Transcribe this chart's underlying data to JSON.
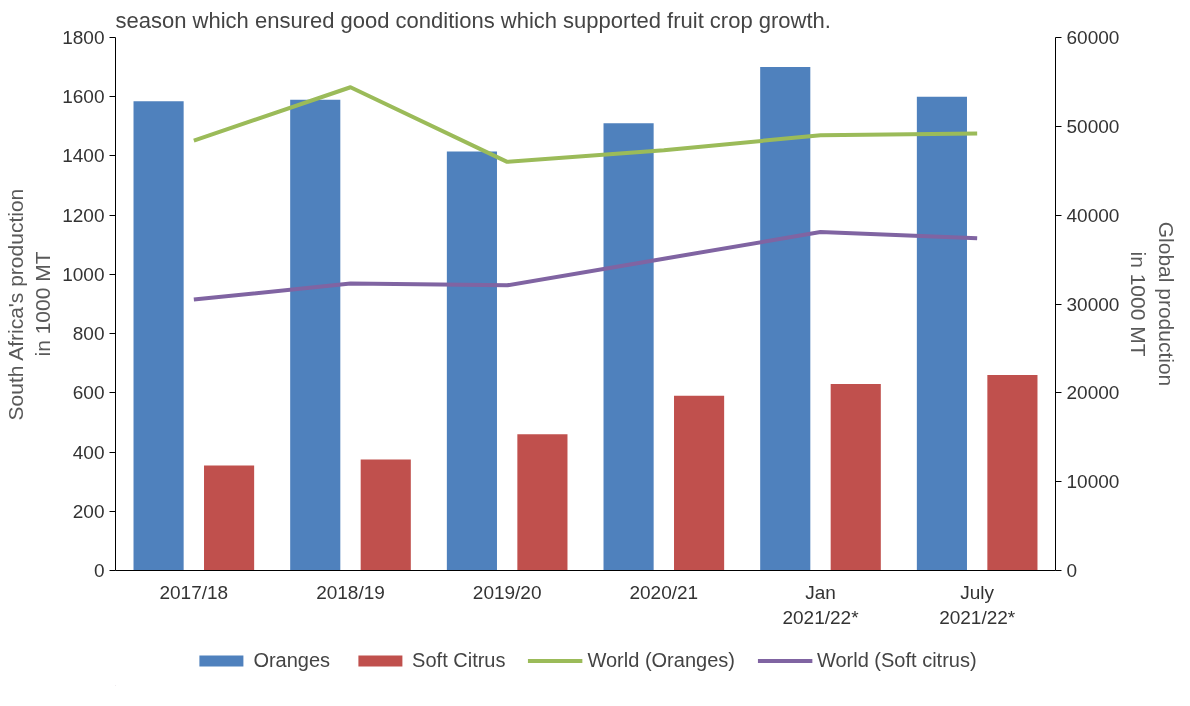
{
  "chart_data": {
    "type": "bar",
    "annotations": [
      "season which ensured good conditions which supported fruit crop growth."
    ],
    "categories": [
      "2017/18",
      "2018/19",
      "2019/20",
      "2020/21",
      "Jan\n2021/22*",
      "July\n2021/22*"
    ],
    "ylabel": "South Africa's production\nin 1000 MT",
    "y2label": "Global production\nin 1000 MT",
    "ylim": [
      0,
      1800
    ],
    "yticks": [
      0,
      200,
      400,
      600,
      800,
      1000,
      1200,
      1400,
      1600,
      1800
    ],
    "y2lim": [
      0,
      60000
    ],
    "y2ticks": [
      0,
      10000,
      20000,
      30000,
      40000,
      50000,
      60000
    ],
    "grid": false,
    "legend": "bottom",
    "series": [
      {
        "name": "Oranges",
        "color": "#4f81bd",
        "values": [
          1585,
          1590,
          1415,
          1510,
          1700,
          1600
        ]
      },
      {
        "name": "Soft Citrus",
        "color": "#c0504d",
        "values": [
          355,
          375,
          460,
          590,
          630,
          660
        ]
      },
      {
        "name": "World (Oranges)",
        "type": "line",
        "axis": "y2",
        "color": "#9bbb59",
        "values": [
          48400,
          54400,
          46000,
          47300,
          49000,
          49200
        ]
      },
      {
        "name": "World (Soft citrus)",
        "type": "line",
        "axis": "y2",
        "color": "#8064a2",
        "values": [
          30500,
          32300,
          32100,
          35100,
          38100,
          37400
        ]
      }
    ]
  }
}
